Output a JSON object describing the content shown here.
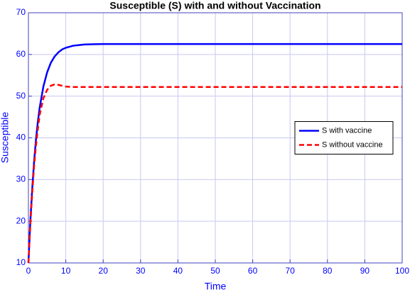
{
  "chart_data": {
    "type": "line",
    "title": "Susceptible (S) with and without Vaccination",
    "xlabel": "Time",
    "ylabel": "Susceptible",
    "x": [
      0,
      0.5,
      1,
      1.5,
      2,
      2.5,
      3,
      4,
      5,
      6,
      7,
      8,
      9,
      10,
      12,
      15,
      20,
      30,
      40,
      50,
      60,
      70,
      80,
      90,
      100
    ],
    "series": [
      {
        "name": "S with vaccine",
        "color": "#0000ff",
        "dash": "solid",
        "values": [
          10,
          19.7,
          27.6,
          34.1,
          39.4,
          43.7,
          47.2,
          52.3,
          55.7,
          58.0,
          59.5,
          60.5,
          61.2,
          61.6,
          62.1,
          62.4,
          62.5,
          62.5,
          62.5,
          62.5,
          62.5,
          62.5,
          62.5,
          62.5,
          62.5
        ]
      },
      {
        "name": "S without vaccine",
        "color": "#ff0000",
        "dash": "dashed",
        "values": [
          10,
          19,
          26.5,
          33,
          38,
          42,
          45.5,
          49.5,
          51.5,
          52.5,
          52.8,
          52.7,
          52.5,
          52.3,
          52.2,
          52.2,
          52.2,
          52.2,
          52.2,
          52.2,
          52.2,
          52.2,
          52.2,
          52.2,
          52.2
        ]
      }
    ],
    "xlim": [
      0,
      100
    ],
    "xticks": [
      0,
      10,
      20,
      30,
      40,
      50,
      60,
      70,
      80,
      90,
      100
    ],
    "ylim": [
      10,
      70
    ],
    "yticks": [
      10,
      20,
      30,
      40,
      50,
      60,
      70
    ],
    "grid": true,
    "legend": "east"
  }
}
